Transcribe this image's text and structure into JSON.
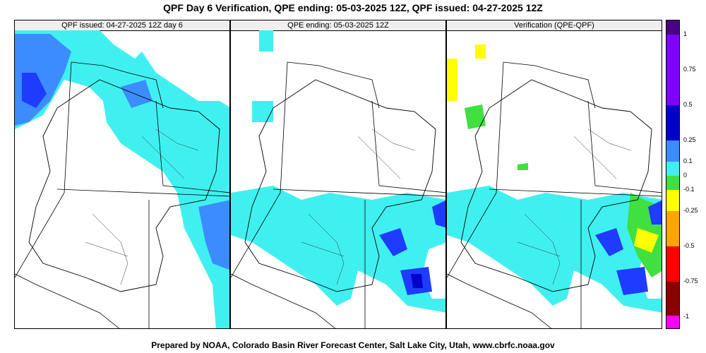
{
  "title": "QPF Day 6 Verification, QPE ending: 05-03-2025 12Z, QPF issued: 04-27-2025 12Z",
  "footer": "Prepared by NOAA, Colorado Basin River Forecast Center, Salt Lake City, Utah, www.cbrfc.noaa.gov",
  "panels": [
    {
      "label": "QPF issued: 04-27-2025 12Z day 6"
    },
    {
      "label": "QPE ending: 05-03-2025 12Z"
    },
    {
      "label": "Verification (QPE-QPF)"
    }
  ],
  "legend": {
    "labels": [
      "1",
      "0.75",
      "0.5",
      "0.25",
      "0.1",
      "0",
      "-0.1",
      "-0.25",
      "-0.5",
      "-0.75",
      "-1"
    ],
    "colors": {
      "purple_dark": "#4b0082",
      "purple": "#7f00ff",
      "blue_dark": "#0000cd",
      "blue": "#1e3cff",
      "mid_blue": "#3c8cff",
      "cyan": "#40f0f0",
      "green": "#40e040",
      "yellow": "#ffff00",
      "orange": "#ffa500",
      "red": "#ff0000",
      "dark_red": "#8b0000",
      "magenta": "#ff00ff"
    }
  }
}
